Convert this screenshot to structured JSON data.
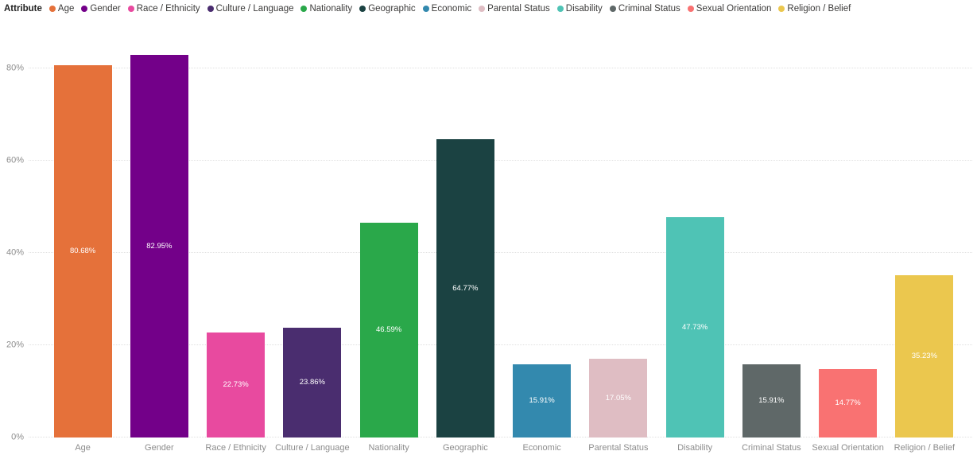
{
  "legend": {
    "title": "Attribute"
  },
  "chart_data": {
    "type": "bar",
    "title": "",
    "xlabel": "",
    "ylabel": "",
    "legend_title": "Attribute",
    "legend_position": "top",
    "grid": "horizontal-dotted",
    "ylim": [
      0,
      88
    ],
    "y_tick_values": [
      0,
      20,
      40,
      60,
      80
    ],
    "y_tick_labels": [
      "0%",
      "20%",
      "40%",
      "60%",
      "80%"
    ],
    "categories": [
      "Age",
      "Gender",
      "Race / Ethnicity",
      "Culture / Language",
      "Nationality",
      "Geographic",
      "Economic",
      "Parental Status",
      "Disability",
      "Criminal Status",
      "Sexual Orientation",
      "Religion / Belief"
    ],
    "values": [
      80.68,
      82.95,
      22.73,
      23.86,
      46.59,
      64.77,
      15.91,
      17.05,
      47.73,
      15.91,
      14.77,
      35.23
    ],
    "value_labels": [
      "80.68%",
      "82.95%",
      "22.73%",
      "23.86%",
      "46.59%",
      "64.77%",
      "15.91%",
      "17.05%",
      "47.73%",
      "15.91%",
      "14.77%",
      "35.23%"
    ],
    "colors": [
      "#E5713A",
      "#730089",
      "#E84A9F",
      "#4A2D6F",
      "#2AA84A",
      "#1B4242",
      "#3389AE",
      "#DFBDC3",
      "#4FC3B5",
      "#5F6868",
      "#F97272",
      "#EBC74E"
    ]
  }
}
